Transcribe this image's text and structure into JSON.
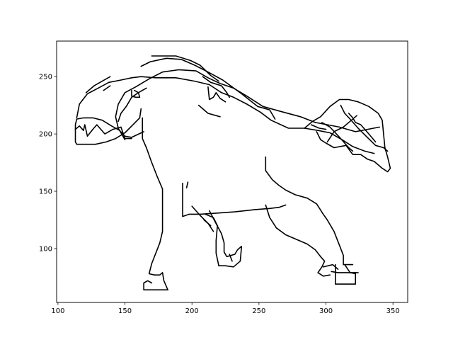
{
  "chart_data": {
    "type": "line",
    "title": "",
    "xlabel": "",
    "ylabel": "",
    "xlim": [
      99,
      361
    ],
    "ylim": [
      53,
      281
    ],
    "x_ticks": [
      100,
      150,
      200,
      250,
      300,
      350
    ],
    "y_ticks": [
      100,
      150,
      200,
      250
    ],
    "x_tick_labels": [
      "100",
      "150",
      "200",
      "250",
      "300",
      "350"
    ],
    "y_tick_labels": [
      "100",
      "150",
      "200",
      "250"
    ],
    "grid": false,
    "legend": "none",
    "line_color": "#000000",
    "series": [
      {
        "values": [
          [
            163,
            214
          ],
          [
            163,
            196
          ],
          [
            166,
            188
          ],
          [
            170,
            175
          ],
          [
            174,
            163
          ],
          [
            178,
            152
          ],
          [
            178,
            115
          ],
          [
            176,
            105
          ],
          [
            173,
            96
          ],
          [
            170,
            87
          ],
          [
            168,
            78
          ],
          [
            172,
            77
          ],
          [
            176,
            77
          ],
          [
            178,
            79
          ],
          [
            179,
            72
          ],
          [
            182,
            64
          ]
        ]
      },
      {
        "values": [
          [
            182,
            64
          ],
          [
            176,
            64
          ],
          [
            170,
            64
          ],
          [
            164,
            64
          ],
          [
            164,
            70
          ],
          [
            167,
            72
          ],
          [
            170,
            70
          ]
        ]
      },
      {
        "values": [
          [
            162,
            222
          ],
          [
            161,
            214
          ],
          [
            156,
            208
          ],
          [
            150,
            201
          ],
          [
            143,
            196
          ],
          [
            136,
            193
          ],
          [
            128,
            191
          ],
          [
            121,
            191
          ],
          [
            114,
            191
          ],
          [
            113,
            193
          ],
          [
            113,
            201
          ],
          [
            113,
            208
          ],
          [
            114,
            213
          ],
          [
            119,
            214
          ],
          [
            126,
            214
          ],
          [
            133,
            212
          ],
          [
            140,
            207
          ],
          [
            146,
            203
          ],
          [
            150,
            198
          ],
          [
            155,
            197
          ],
          [
            164,
            202
          ]
        ]
      },
      {
        "values": [
          [
            113,
            204
          ],
          [
            116,
            207
          ],
          [
            119,
            203
          ],
          [
            120,
            208
          ],
          [
            122,
            198
          ],
          [
            126,
            204
          ],
          [
            129,
            208
          ],
          [
            132,
            204
          ],
          [
            135,
            200
          ],
          [
            141,
            204
          ],
          [
            147,
            206
          ],
          [
            150,
            196
          ],
          [
            155,
            196
          ]
        ]
      },
      {
        "values": [
          [
            150,
            195
          ],
          [
            145,
            205
          ],
          [
            143,
            215
          ],
          [
            145,
            226
          ],
          [
            150,
            236
          ],
          [
            158,
            241
          ],
          [
            168,
            248
          ],
          [
            178,
            254
          ],
          [
            190,
            256
          ],
          [
            203,
            255
          ],
          [
            212,
            249
          ],
          [
            221,
            244
          ],
          [
            231,
            240
          ],
          [
            241,
            233
          ],
          [
            253,
            224
          ],
          [
            265,
            220
          ],
          [
            281,
            215
          ],
          [
            292,
            210
          ],
          [
            310,
            206
          ],
          [
            322,
            202
          ],
          [
            340,
            206
          ]
        ]
      },
      {
        "values": [
          [
            114,
            214
          ],
          [
            116,
            226
          ],
          [
            122,
            235
          ],
          [
            130,
            240
          ],
          [
            138,
            245
          ],
          [
            147,
            247
          ],
          [
            155,
            249
          ],
          [
            162,
            250
          ],
          [
            173,
            249
          ],
          [
            188,
            249
          ],
          [
            202,
            246
          ],
          [
            213,
            243
          ],
          [
            222,
            236
          ],
          [
            231,
            232
          ],
          [
            241,
            226
          ],
          [
            251,
            219
          ],
          [
            259,
            212
          ],
          [
            272,
            205
          ],
          [
            284,
            205
          ],
          [
            294,
            203
          ],
          [
            303,
            201
          ],
          [
            312,
            195
          ],
          [
            320,
            189
          ],
          [
            329,
            185
          ],
          [
            336,
            183
          ]
        ]
      },
      {
        "values": [
          [
            162,
            259
          ],
          [
            169,
            263
          ],
          [
            181,
            266
          ],
          [
            192,
            265
          ],
          [
            202,
            260
          ],
          [
            212,
            254
          ],
          [
            223,
            247
          ],
          [
            237,
            235
          ],
          [
            249,
            224
          ],
          [
            258,
            221
          ],
          [
            262,
            213
          ]
        ]
      },
      {
        "values": [
          [
            170,
            268
          ],
          [
            188,
            268
          ],
          [
            199,
            264
          ],
          [
            206,
            260
          ],
          [
            214,
            251
          ],
          [
            220,
            246
          ]
        ]
      },
      {
        "values": [
          [
            212,
            241
          ],
          [
            213,
            230
          ],
          [
            216,
            232
          ],
          [
            218,
            236
          ],
          [
            221,
            231
          ],
          [
            225,
            228
          ]
        ]
      },
      {
        "values": [
          [
            208,
            250
          ],
          [
            214,
            245
          ],
          [
            222,
            242
          ],
          [
            226,
            236
          ],
          [
            228,
            232
          ]
        ]
      },
      {
        "values": [
          [
            205,
            225
          ],
          [
            212,
            218
          ],
          [
            221,
            215
          ]
        ]
      },
      {
        "values": [
          [
            145,
            211
          ],
          [
            147,
            218
          ],
          [
            151,
            224
          ],
          [
            155,
            232
          ],
          [
            160,
            236
          ],
          [
            166,
            240
          ]
        ]
      },
      {
        "values": [
          [
            121,
            236
          ],
          [
            127,
            242
          ],
          [
            133,
            246
          ],
          [
            139,
            250
          ]
        ]
      },
      {
        "values": [
          [
            134,
            238
          ],
          [
            139,
            242
          ]
        ]
      },
      {
        "values": [
          [
            155,
            238
          ],
          [
            155,
            233
          ],
          [
            158,
            232
          ],
          [
            161,
            232
          ],
          [
            160,
            236
          ],
          [
            157,
            238
          ]
        ]
      },
      {
        "values": [
          [
            193,
            157
          ],
          [
            193,
            146
          ],
          [
            193,
            128
          ],
          [
            198,
            130
          ],
          [
            206,
            130
          ],
          [
            219,
            131
          ],
          [
            232,
            132
          ],
          [
            247,
            134
          ],
          [
            258,
            135
          ],
          [
            265,
            136
          ],
          [
            270,
            138
          ]
        ]
      },
      {
        "values": [
          [
            197,
            158
          ],
          [
            196,
            153
          ]
        ]
      },
      {
        "values": [
          [
            255,
            180
          ],
          [
            255,
            168
          ],
          [
            260,
            160
          ],
          [
            265,
            155
          ],
          [
            270,
            151
          ],
          [
            277,
            147
          ],
          [
            286,
            144
          ],
          [
            293,
            139
          ],
          [
            298,
            130
          ],
          [
            301,
            125
          ],
          [
            306,
            115
          ],
          [
            310,
            103
          ],
          [
            313,
            94
          ],
          [
            313,
            86
          ],
          [
            320,
            86
          ]
        ]
      },
      {
        "values": [
          [
            255,
            138
          ],
          [
            258,
            127
          ],
          [
            263,
            118
          ],
          [
            270,
            112
          ],
          [
            278,
            108
          ],
          [
            286,
            104
          ],
          [
            292,
            99
          ],
          [
            296,
            93
          ],
          [
            299,
            89
          ],
          [
            297,
            84
          ],
          [
            294,
            79
          ],
          [
            298,
            76
          ],
          [
            303,
            77
          ]
        ]
      },
      {
        "values": [
          [
            298,
            84
          ],
          [
            305,
            86
          ],
          [
            309,
            82
          ]
        ]
      },
      {
        "values": [
          [
            314,
            86
          ],
          [
            318,
            79
          ],
          [
            320,
            79
          ],
          [
            324,
            79
          ]
        ]
      },
      {
        "values": [
          [
            322,
            79
          ],
          [
            322,
            69
          ],
          [
            316,
            69
          ],
          [
            311,
            69
          ],
          [
            307,
            69
          ],
          [
            307,
            79
          ],
          [
            307,
            86
          ]
        ]
      },
      {
        "values": [
          [
            304,
            80
          ],
          [
            309,
            79
          ],
          [
            318,
            79
          ],
          [
            322,
            78
          ]
        ]
      },
      {
        "values": [
          [
            213,
            133
          ],
          [
            217,
            124
          ],
          [
            222,
            113
          ],
          [
            224,
            105
          ],
          [
            224,
            97
          ],
          [
            226,
            93
          ],
          [
            232,
            95
          ],
          [
            234,
            99
          ],
          [
            237,
            102
          ],
          [
            236,
            89
          ],
          [
            231,
            84
          ],
          [
            225,
            85
          ],
          [
            220,
            85
          ]
        ]
      },
      {
        "values": [
          [
            220,
            85
          ],
          [
            218,
            96
          ],
          [
            218,
            107
          ],
          [
            219,
            120
          ],
          [
            216,
            127
          ],
          [
            210,
            130
          ]
        ]
      },
      {
        "values": [
          [
            200,
            137
          ],
          [
            206,
            129
          ],
          [
            212,
            122
          ],
          [
            216,
            115
          ]
        ]
      },
      {
        "values": [
          [
            209,
            125
          ],
          [
            214,
            120
          ]
        ]
      },
      {
        "values": [
          [
            228,
            95
          ],
          [
            230,
            89
          ]
        ]
      },
      {
        "values": [
          [
            284,
            205
          ],
          [
            290,
            211
          ],
          [
            296,
            215
          ],
          [
            303,
            224
          ],
          [
            310,
            230
          ],
          [
            317,
            230
          ],
          [
            324,
            228
          ],
          [
            332,
            224
          ],
          [
            339,
            218
          ],
          [
            342,
            212
          ],
          [
            343,
            200
          ],
          [
            344,
            188
          ],
          [
            346,
            180
          ],
          [
            348,
            170
          ],
          [
            346,
            167
          ],
          [
            342,
            170
          ],
          [
            336,
            176
          ],
          [
            331,
            178
          ],
          [
            326,
            182
          ],
          [
            320,
            182
          ],
          [
            315,
            190
          ],
          [
            306,
            188
          ],
          [
            300,
            192
          ],
          [
            296,
            195
          ],
          [
            293,
            202
          ]
        ]
      },
      {
        "values": [
          [
            297,
            210
          ],
          [
            303,
            206
          ],
          [
            311,
            196
          ],
          [
            317,
            188
          ],
          [
            320,
            185
          ]
        ]
      },
      {
        "values": [
          [
            301,
            193
          ],
          [
            306,
            202
          ],
          [
            313,
            206
          ],
          [
            318,
            211
          ],
          [
            323,
            216
          ]
        ]
      },
      {
        "values": [
          [
            311,
            225
          ],
          [
            314,
            218
          ],
          [
            318,
            213
          ],
          [
            324,
            205
          ],
          [
            330,
            198
          ],
          [
            337,
            190
          ],
          [
            343,
            188
          ],
          [
            346,
            185
          ]
        ]
      },
      {
        "values": [
          [
            317,
            218
          ],
          [
            320,
            214
          ],
          [
            322,
            210
          ],
          [
            326,
            208
          ],
          [
            332,
            200
          ],
          [
            337,
            193
          ]
        ]
      },
      {
        "values": [
          [
            289,
            208
          ],
          [
            295,
            205
          ],
          [
            300,
            204
          ]
        ]
      }
    ]
  }
}
